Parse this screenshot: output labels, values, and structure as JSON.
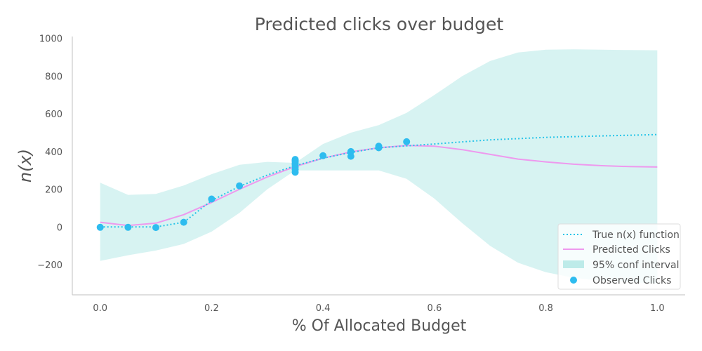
{
  "chart_data": {
    "type": "line",
    "title": "Predicted clicks over budget",
    "xlabel": "% Of Allocated Budget",
    "ylabel": "n(x)",
    "xlim": [
      -0.05,
      1.05
    ],
    "ylim": [
      -360,
      1010
    ],
    "x_ticks": [
      0.0,
      0.2,
      0.4,
      0.6,
      0.8,
      1.0
    ],
    "x_tick_labels": [
      "0.0",
      "0.2",
      "0.4",
      "0.6",
      "0.8",
      "1.0"
    ],
    "y_ticks": [
      -200,
      0,
      200,
      400,
      600,
      800,
      1000
    ],
    "y_tick_labels": [
      "−200",
      "0",
      "200",
      "400",
      "600",
      "800",
      "1000"
    ],
    "grid": false,
    "legend_position": "bottom-right",
    "legend": [
      {
        "label": "True n(x) function",
        "kind": "dotted-line",
        "color": "#27c4e8"
      },
      {
        "label": "Predicted Clicks",
        "kind": "line",
        "color": "#ee99ee"
      },
      {
        "label": "95% conf interval",
        "kind": "band",
        "color": "#bdebe9"
      },
      {
        "label": "Observed Clicks",
        "kind": "point",
        "color": "#2ebcef"
      }
    ],
    "true_function": {
      "name": "True n(x) function",
      "color": "#27c4e8",
      "x": [
        0.0,
        0.05,
        0.1,
        0.15,
        0.2,
        0.25,
        0.3,
        0.35,
        0.4,
        0.45,
        0.5,
        0.55,
        0.6,
        0.7,
        0.8,
        0.9,
        1.0
      ],
      "y": [
        0,
        0,
        0,
        25,
        140,
        215,
        275,
        325,
        365,
        395,
        420,
        430,
        440,
        462,
        475,
        483,
        490
      ]
    },
    "predicted": {
      "name": "Predicted Clicks",
      "color": "#ee99ee",
      "x": [
        0.0,
        0.05,
        0.1,
        0.15,
        0.2,
        0.25,
        0.3,
        0.35,
        0.4,
        0.45,
        0.5,
        0.55,
        0.6,
        0.65,
        0.7,
        0.75,
        0.8,
        0.85,
        0.9,
        0.95,
        1.0
      ],
      "y": [
        25,
        8,
        20,
        65,
        130,
        200,
        265,
        320,
        365,
        398,
        420,
        432,
        428,
        410,
        385,
        360,
        345,
        333,
        325,
        320,
        318
      ]
    },
    "confidence_interval": {
      "name": "95% conf interval",
      "color": "#bdebe9",
      "x": [
        0.0,
        0.05,
        0.1,
        0.15,
        0.2,
        0.25,
        0.3,
        0.35,
        0.4,
        0.45,
        0.5,
        0.55,
        0.6,
        0.65,
        0.7,
        0.75,
        0.8,
        0.85,
        0.9,
        0.95,
        1.0
      ],
      "upper": [
        235,
        170,
        175,
        220,
        280,
        330,
        345,
        340,
        440,
        500,
        540,
        605,
        700,
        800,
        880,
        925,
        940,
        942,
        940,
        938,
        937
      ],
      "lower": [
        -180,
        -150,
        -125,
        -90,
        -25,
        75,
        200,
        300,
        300,
        300,
        300,
        255,
        150,
        20,
        -100,
        -190,
        -240,
        -270,
        -285,
        -292,
        -300
      ]
    },
    "observed": {
      "name": "Observed Clicks",
      "color": "#2ebcef",
      "x": [
        0.0,
        0.05,
        0.1,
        0.15,
        0.2,
        0.25,
        0.35,
        0.35,
        0.35,
        0.35,
        0.35,
        0.35,
        0.35,
        0.35,
        0.4,
        0.45,
        0.45,
        0.5,
        0.5,
        0.55
      ],
      "y": [
        -2,
        -2,
        -3,
        25,
        148,
        218,
        290,
        305,
        318,
        330,
        338,
        348,
        352,
        358,
        378,
        375,
        400,
        420,
        428,
        452
      ]
    }
  }
}
